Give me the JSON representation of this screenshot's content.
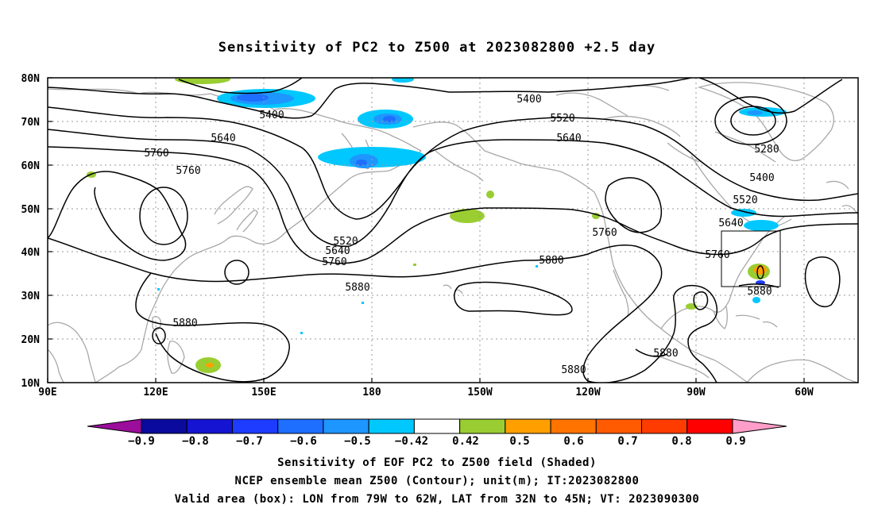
{
  "title": "Sensitivity of PC2 to Z500 at 2023082800 +2.5 day",
  "map": {
    "lat_labels": [
      "80N",
      "70N",
      "60N",
      "50N",
      "40N",
      "30N",
      "20N",
      "10N"
    ],
    "lon_labels": [
      "90E",
      "120E",
      "150E",
      "180",
      "150W",
      "120W",
      "90W",
      "60W"
    ],
    "contour_labels": [
      {
        "id": "c1",
        "text": "5400"
      },
      {
        "id": "c2",
        "text": "5400"
      },
      {
        "id": "c3",
        "text": "5520"
      },
      {
        "id": "c4",
        "text": "5640"
      },
      {
        "id": "c5",
        "text": "5640"
      },
      {
        "id": "c6",
        "text": "5760"
      },
      {
        "id": "c7",
        "text": "5760"
      },
      {
        "id": "c8",
        "text": "5520"
      },
      {
        "id": "c9",
        "text": "5640"
      },
      {
        "id": "c10",
        "text": "5760"
      },
      {
        "id": "c11",
        "text": "5880"
      },
      {
        "id": "c12",
        "text": "5880"
      },
      {
        "id": "c13",
        "text": "5880"
      },
      {
        "id": "c14",
        "text": "5760"
      },
      {
        "id": "c15",
        "text": "5280"
      },
      {
        "id": "c16",
        "text": "5400"
      },
      {
        "id": "c17",
        "text": "5520"
      },
      {
        "id": "c18",
        "text": "5640"
      },
      {
        "id": "c19",
        "text": "5760"
      },
      {
        "id": "c20",
        "text": "5880"
      },
      {
        "id": "c21",
        "text": "5880"
      },
      {
        "id": "c22",
        "text": "5880"
      }
    ],
    "valid_box": {
      "lon_from": "79W",
      "lon_to": "62W",
      "lat_from": "32N",
      "lat_to": "45N"
    }
  },
  "colorbar": {
    "colors": [
      "#9b0d9b",
      "#0a0a9c",
      "#1414d2",
      "#1e3cff",
      "#1e6eff",
      "#1e96ff",
      "#00c8ff",
      "#ffffff",
      "#9acd32",
      "#ff9f00",
      "#ff7300",
      "#ff5a00",
      "#ff3c00",
      "#ff0000",
      "#ff9ec8"
    ],
    "labels": [
      "−0.9",
      "−0.8",
      "−0.7",
      "−0.6",
      "−0.5",
      "−0.42",
      "0.42",
      "0.5",
      "0.6",
      "0.7",
      "0.8",
      "0.9"
    ]
  },
  "footer": {
    "line1": "Sensitivity of EOF PC2 to Z500 field (Shaded)",
    "line2": "NCEP ensemble mean Z500 (Contour); unit(m); IT:2023082800",
    "line3": "Valid area (box): LON from 79W to 62W, LAT from 32N to 45N; VT: 2023090300"
  }
}
